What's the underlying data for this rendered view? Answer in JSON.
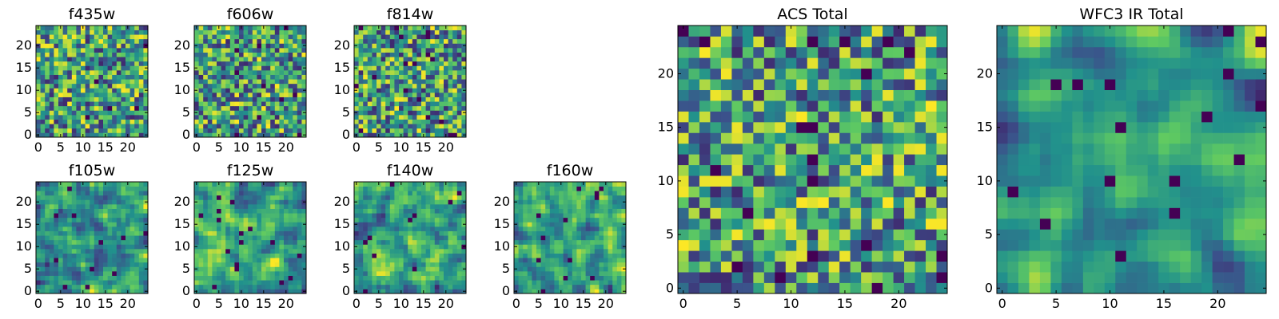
{
  "figure": {
    "colormap": [
      "#440154",
      "#3b528b",
      "#21918c",
      "#5ec962",
      "#fde725"
    ],
    "background": "#ffffff"
  },
  "chart_data": [
    {
      "id": "f435w",
      "type": "heatmap",
      "title": "f435w",
      "grid_size": 25,
      "xlim": [
        0,
        24
      ],
      "ylim": [
        0,
        24
      ],
      "xticks": [
        0,
        5,
        10,
        15,
        20
      ],
      "yticks": [
        0,
        5,
        10,
        15,
        20
      ],
      "smooth": 0,
      "seed": 11,
      "dark_fraction": 0.015
    },
    {
      "id": "f606w",
      "type": "heatmap",
      "title": "f606w",
      "grid_size": 25,
      "xlim": [
        0,
        24
      ],
      "ylim": [
        0,
        24
      ],
      "xticks": [
        0,
        5,
        10,
        15,
        20
      ],
      "yticks": [
        0,
        5,
        10,
        15,
        20
      ],
      "smooth": 0,
      "seed": 23,
      "dark_fraction": 0.015
    },
    {
      "id": "f814w",
      "type": "heatmap",
      "title": "f814w",
      "grid_size": 25,
      "xlim": [
        0,
        24
      ],
      "ylim": [
        0,
        24
      ],
      "xticks": [
        0,
        5,
        10,
        15,
        20
      ],
      "yticks": [
        0,
        5,
        10,
        15,
        20
      ],
      "smooth": 0,
      "seed": 37,
      "dark_fraction": 0.015
    },
    {
      "id": "f105w",
      "type": "heatmap",
      "title": "f105w",
      "grid_size": 25,
      "xlim": [
        0,
        24
      ],
      "ylim": [
        0,
        24
      ],
      "xticks": [
        0,
        5,
        10,
        15,
        20
      ],
      "yticks": [
        0,
        5,
        10,
        15,
        20
      ],
      "smooth": 1,
      "seed": 41,
      "dark_fraction": 0.02
    },
    {
      "id": "f125w",
      "type": "heatmap",
      "title": "f125w",
      "grid_size": 25,
      "xlim": [
        0,
        24
      ],
      "ylim": [
        0,
        24
      ],
      "xticks": [
        0,
        5,
        10,
        15,
        20
      ],
      "yticks": [
        0,
        5,
        10,
        15,
        20
      ],
      "smooth": 1,
      "seed": 53,
      "dark_fraction": 0.03
    },
    {
      "id": "f140w",
      "type": "heatmap",
      "title": "f140w",
      "grid_size": 25,
      "xlim": [
        0,
        24
      ],
      "ylim": [
        0,
        24
      ],
      "xticks": [
        0,
        5,
        10,
        15,
        20
      ],
      "yticks": [
        0,
        5,
        10,
        15,
        20
      ],
      "smooth": 1,
      "seed": 67,
      "dark_fraction": 0.02
    },
    {
      "id": "f160w",
      "type": "heatmap",
      "title": "f160w",
      "grid_size": 25,
      "xlim": [
        0,
        24
      ],
      "ylim": [
        0,
        24
      ],
      "xticks": [
        0,
        5,
        10,
        15,
        20
      ],
      "yticks": [
        0,
        5,
        10,
        15,
        20
      ],
      "smooth": 1,
      "seed": 79,
      "dark_fraction": 0.02
    },
    {
      "id": "acs_total",
      "type": "heatmap",
      "title": "ACS Total",
      "grid_size": 25,
      "xlim": [
        0,
        24
      ],
      "ylim": [
        0,
        24
      ],
      "xticks": [
        0,
        5,
        10,
        15,
        20
      ],
      "yticks": [
        0,
        5,
        10,
        15,
        20
      ],
      "smooth": 0,
      "seed": 97,
      "dark_fraction": 0.02
    },
    {
      "id": "wfc3_ir_total",
      "type": "heatmap",
      "title": "WFC3 IR Total",
      "grid_size": 25,
      "xlim": [
        0,
        24
      ],
      "ylim": [
        0,
        24
      ],
      "xticks": [
        0,
        5,
        10,
        15,
        20
      ],
      "yticks": [
        0,
        5,
        10,
        15,
        20
      ],
      "smooth": 2,
      "seed": 113,
      "dark_fraction": 0.02
    }
  ]
}
